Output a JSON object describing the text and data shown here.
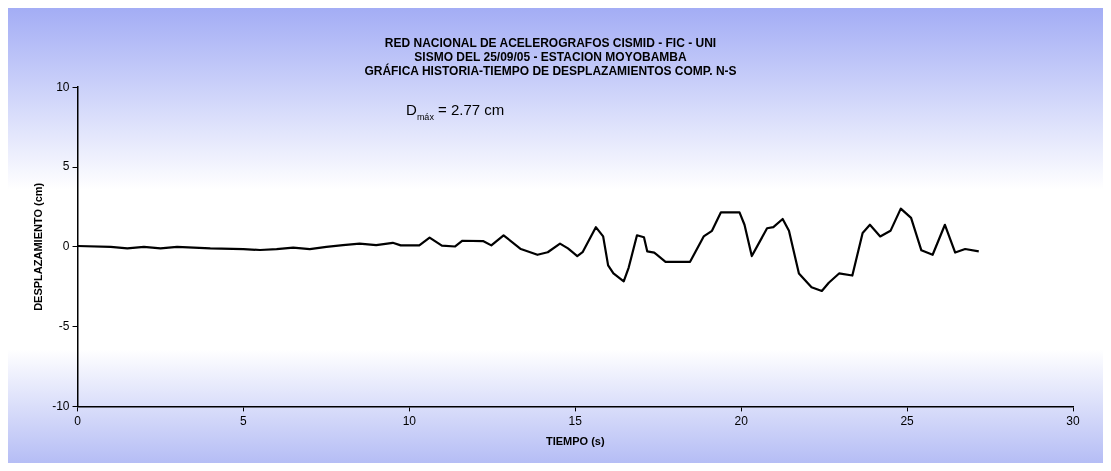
{
  "chart_data": {
    "type": "line",
    "title": [
      "RED NACIONAL DE ACELEROGRAFOS CISMID - FIC - UNI",
      "SISMO DEL 25/09/05 - ESTACION MOYOBAMBA",
      "GRÁFICA HISTORIA-TIEMPO DE DESPLAZAMIENTOS COMP. N-S"
    ],
    "xlabel": "TIEMPO (s)",
    "ylabel": "DESPLAZAMIENTO (cm)",
    "annotations": [
      "D$_{máx}$ = 2.77 cm"
    ],
    "x": [
      0,
      1,
      1.5,
      2,
      2.5,
      3,
      4,
      5,
      5.5,
      6,
      6.5,
      7,
      7.5,
      8,
      8.5,
      9,
      9.5,
      9.74,
      10.3,
      10.61,
      10.98,
      11.38,
      11.6,
      12.22,
      12.47,
      12.84,
      13.36,
      13.86,
      14.17,
      14.54,
      14.78,
      15.06,
      15.22,
      15.62,
      15.84,
      15.99,
      16.15,
      16.46,
      16.61,
      16.86,
      17.07,
      17.17,
      17.38,
      17.72,
      18.46,
      18.87,
      19.12,
      19.39,
      19.95,
      20.1,
      20.32,
      20.78,
      20.97,
      21.25,
      21.44,
      21.74,
      22.12,
      22.43,
      22.64,
      22.95,
      23.35,
      23.66,
      23.88,
      24.19,
      24.5,
      24.81,
      25.12,
      25.43,
      25.77,
      26.14,
      26.45,
      26.75,
      27.16
    ],
    "series": [
      {
        "color": "#000000",
        "values": [
          0.05,
          0.0,
          -0.1,
          0.0,
          -0.1,
          0.0,
          -0.1,
          -0.15,
          -0.2,
          -0.15,
          -0.05,
          -0.15,
          0.0,
          0.1,
          0.2,
          0.1,
          0.25,
          0.09,
          0.09,
          0.58,
          0.07,
          0.02,
          0.38,
          0.36,
          0.09,
          0.72,
          -0.14,
          -0.5,
          -0.34,
          0.2,
          -0.1,
          -0.58,
          -0.34,
          1.23,
          0.65,
          -1.16,
          -1.67,
          -2.17,
          -1.3,
          0.72,
          0.6,
          -0.29,
          -0.36,
          -0.94,
          -0.94,
          0.65,
          1.0,
          2.16,
          2.16,
          1.38,
          -0.58,
          1.16,
          1.23,
          1.74,
          1.0,
          -1.67,
          -2.54,
          -2.77,
          -2.25,
          -1.67,
          -1.8,
          0.87,
          1.38,
          0.65,
          1.0,
          2.39,
          1.81,
          -0.22,
          -0.5,
          1.38,
          -0.36,
          -0.14,
          -0.29
        ]
      }
    ],
    "xlim": [
      0,
      30
    ],
    "xticks": [
      0,
      5,
      10,
      15,
      20,
      25,
      30
    ],
    "ylim": [
      -10,
      10
    ],
    "yticks": [
      -10,
      -5,
      0,
      5,
      10
    ],
    "grid": false,
    "legend": false,
    "marker": "none",
    "line_style": "solid"
  }
}
